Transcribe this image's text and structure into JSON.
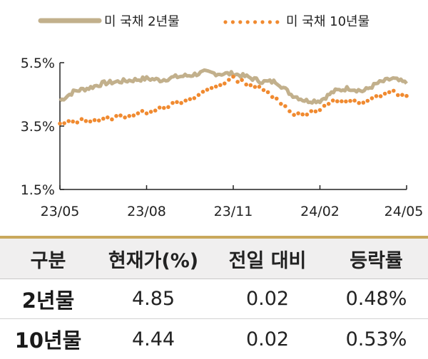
{
  "legend": {
    "series1": "미 국채 2년물",
    "series2": "미 국채 10년물"
  },
  "colors": {
    "series1": "#c2b08c",
    "series2": "#f08a30",
    "gold_line": "#c9a85c",
    "header_bg": "#f0efef"
  },
  "chart_data": {
    "type": "line",
    "x_ticks": [
      "23/05",
      "23/08",
      "23/11",
      "24/02",
      "24/05"
    ],
    "y_ticks": [
      "5.5%",
      "3.5%",
      "1.5%"
    ],
    "ylim": [
      1.5,
      5.5
    ],
    "x_range": [
      "23/05",
      "24/05"
    ],
    "grid": false,
    "legend_position": "top",
    "series": [
      {
        "name": "미 국채 2년물",
        "style": "solid",
        "x": [
          0,
          0.5,
          1,
          1.5,
          2,
          2.5,
          3,
          3.5,
          4,
          4.5,
          5,
          5.5,
          6,
          6.5,
          7,
          7.5,
          8,
          8.5,
          9,
          9.5,
          10,
          10.5,
          11,
          11.5,
          12
        ],
        "values": [
          4.3,
          4.6,
          4.7,
          4.85,
          4.9,
          4.95,
          5.0,
          4.95,
          5.05,
          5.1,
          5.2,
          5.15,
          5.15,
          5.05,
          4.9,
          4.9,
          4.5,
          4.3,
          4.3,
          4.6,
          4.7,
          4.6,
          4.85,
          5.0,
          4.85
        ]
      },
      {
        "name": "미 국채 10년물",
        "style": "dotted",
        "x": [
          0,
          0.5,
          1,
          1.5,
          2,
          2.5,
          3,
          3.5,
          4,
          4.5,
          5,
          5.5,
          6,
          6.5,
          7,
          7.5,
          8,
          8.5,
          9,
          9.5,
          10,
          10.5,
          11,
          11.5,
          12
        ],
        "values": [
          3.55,
          3.65,
          3.7,
          3.7,
          3.8,
          3.85,
          3.95,
          4.1,
          4.2,
          4.3,
          4.6,
          4.8,
          5.0,
          4.85,
          4.65,
          4.4,
          3.9,
          3.9,
          4.0,
          4.3,
          4.3,
          4.2,
          4.45,
          4.6,
          4.4
        ]
      }
    ]
  },
  "table": {
    "headers": [
      "구분",
      "현재가(%)",
      "전일 대비",
      "등락률"
    ],
    "rows": [
      [
        "2년물",
        "4.85",
        "0.02",
        "0.48%"
      ],
      [
        "10년물",
        "4.44",
        "0.02",
        "0.53%"
      ]
    ]
  }
}
